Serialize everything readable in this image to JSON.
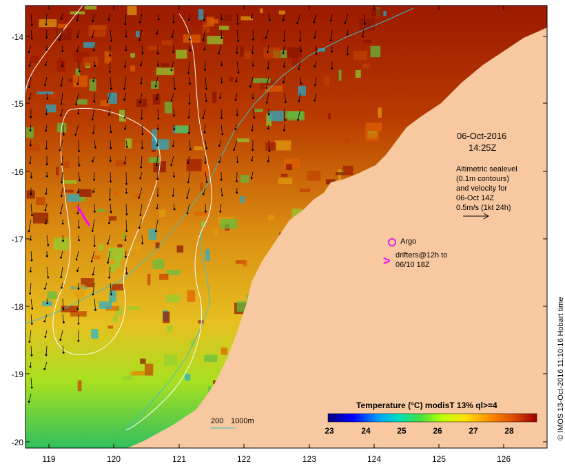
{
  "map": {
    "y_axis_labels": [
      "-14",
      "-15",
      "-16",
      "-17",
      "-18",
      "-19",
      "-20"
    ],
    "x_axis_labels": [
      "119",
      "120",
      "121",
      "122",
      "123",
      "124",
      "125",
      "126"
    ],
    "lat_range": [
      -20.05,
      -13.65
    ],
    "lon_range": [
      118.65,
      126.7
    ],
    "colors": {
      "land": "#f8c9a0",
      "frame": "#000000",
      "contour": "#ffffff",
      "bathymetry": "#40c0c0",
      "argo": "#e020e0",
      "drifter": "#ff00ff",
      "vectors": "#000000"
    }
  },
  "annotations": {
    "date": "06-Oct-2016",
    "time": "14:25Z",
    "altimetry_lines": [
      "Altimetric sealevel",
      "(0.1m contours)",
      "and velocity for",
      "06-Oct 14Z",
      "0.5m/s (1kt 24h)"
    ],
    "argo_label": "Argo",
    "drifters_lines": [
      "drifters@12h to",
      "06/10 18Z"
    ],
    "bathy_labels": [
      "200",
      "1000m"
    ],
    "credit": "© IMOS 13-Oct-2016 11:10:16 Hobart time"
  },
  "colorbar": {
    "title": "Temperature (°C) modisT 13% ql>=4",
    "ticks": [
      "23",
      "24",
      "25",
      "26",
      "27",
      "28"
    ],
    "range": [
      23,
      28.8
    ],
    "stops": [
      "#000080",
      "#0000ff",
      "#00a0ff",
      "#00e0c0",
      "#40e040",
      "#c0ff00",
      "#ffe000",
      "#ff9000",
      "#e05000",
      "#a00000"
    ]
  }
}
